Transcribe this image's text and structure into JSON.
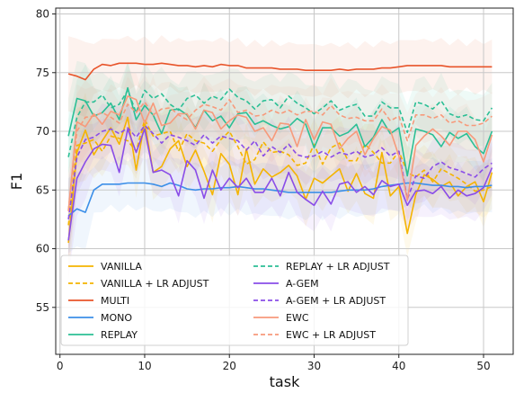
{
  "chart_data": {
    "type": "line",
    "xlabel": "task",
    "ylabel": "F1",
    "xlim": [
      -0.5,
      53.5
    ],
    "ylim": [
      51,
      80.5
    ],
    "xticks": [
      0,
      10,
      20,
      30,
      40,
      50
    ],
    "yticks": [
      55,
      60,
      65,
      70,
      75,
      80
    ],
    "grid": true,
    "legend_position": "lower-left",
    "x": [
      1,
      2,
      3,
      4,
      5,
      6,
      7,
      8,
      9,
      10,
      11,
      12,
      13,
      14,
      15,
      16,
      17,
      18,
      19,
      20,
      21,
      22,
      23,
      24,
      25,
      26,
      27,
      28,
      29,
      30,
      31,
      32,
      33,
      34,
      35,
      36,
      37,
      38,
      39,
      40,
      41,
      42,
      43,
      44,
      45,
      46,
      47,
      48,
      49,
      50,
      51
    ],
    "series": [
      {
        "name": "VANILLA",
        "color": "#f4b400",
        "dash": "solid",
        "band": true,
        "values": [
          60.5,
          68.2,
          70.1,
          68.0,
          69.2,
          70.3,
          68.9,
          71.2,
          66.7,
          70.8,
          66.5,
          67.0,
          68.5,
          69.2,
          67.0,
          68.4,
          66.6,
          64.6,
          68.1,
          67.2,
          64.6,
          68.5,
          65.5,
          66.8,
          66.1,
          66.5,
          67.1,
          66.2,
          64.2,
          66.0,
          65.6,
          66.2,
          66.8,
          64.9,
          66.4,
          64.7,
          64.3,
          68.2,
          64.5,
          65.3,
          61.3,
          64.6,
          66.3,
          65.9,
          65.3,
          65.7,
          64.5,
          65.3,
          65.7,
          64.0,
          66.5
        ]
      },
      {
        "name": "VANILLA + LR ADJUST",
        "color": "#f4b400",
        "dash": "dashed",
        "band": true,
        "values": [
          62.0,
          68.8,
          69.0,
          69.3,
          68.3,
          69.6,
          69.4,
          69.2,
          68.3,
          71.0,
          69.6,
          69.8,
          70.0,
          68.3,
          69.8,
          69.2,
          69.0,
          68.3,
          69.3,
          70.0,
          68.7,
          67.2,
          67.6,
          69.1,
          68.2,
          68.3,
          68.0,
          67.1,
          67.3,
          68.9,
          67.2,
          68.6,
          69.0,
          67.5,
          67.5,
          68.9,
          68.2,
          67.3,
          67.3,
          68.3,
          66.5,
          66.1,
          66.7,
          65.7,
          66.8,
          66.4,
          66.0,
          65.5,
          64.9,
          65.0,
          65.3
        ]
      },
      {
        "name": "MULTI",
        "color": "#e8542a",
        "dash": "solid",
        "band": true,
        "values": [
          74.9,
          74.7,
          74.4,
          75.3,
          75.7,
          75.6,
          75.8,
          75.8,
          75.8,
          75.7,
          75.7,
          75.8,
          75.7,
          75.6,
          75.6,
          75.5,
          75.6,
          75.5,
          75.7,
          75.6,
          75.6,
          75.4,
          75.4,
          75.4,
          75.4,
          75.3,
          75.3,
          75.3,
          75.2,
          75.2,
          75.2,
          75.2,
          75.3,
          75.2,
          75.3,
          75.3,
          75.3,
          75.4,
          75.4,
          75.5,
          75.6,
          75.6,
          75.6,
          75.6,
          75.6,
          75.5,
          75.5,
          75.5,
          75.5,
          75.5,
          75.5
        ]
      },
      {
        "name": "MONO",
        "color": "#3c8fe8",
        "dash": "solid",
        "band": true,
        "values": [
          62.8,
          63.4,
          63.1,
          65.0,
          65.5,
          65.5,
          65.5,
          65.6,
          65.6,
          65.6,
          65.5,
          65.3,
          65.6,
          65.4,
          65.1,
          65.0,
          65.1,
          65.1,
          65.2,
          65.2,
          65.3,
          65.2,
          65.1,
          65.1,
          65.0,
          64.9,
          64.8,
          64.8,
          64.8,
          64.8,
          64.8,
          64.8,
          64.9,
          65.0,
          65.0,
          65.0,
          65.1,
          65.3,
          65.4,
          65.5,
          65.6,
          65.6,
          65.5,
          65.4,
          65.4,
          65.3,
          65.3,
          65.2,
          65.3,
          65.3,
          65.4
        ]
      },
      {
        "name": "REPLAY",
        "color": "#2bbf95",
        "dash": "solid",
        "band": true,
        "values": [
          69.6,
          72.8,
          72.6,
          71.3,
          71.6,
          72.4,
          71.0,
          73.7,
          71.0,
          72.2,
          71.4,
          69.8,
          71.8,
          71.9,
          71.4,
          70.3,
          71.8,
          70.9,
          71.3,
          70.3,
          71.5,
          71.6,
          70.6,
          70.9,
          70.5,
          70.2,
          70.4,
          71.1,
          70.6,
          68.6,
          70.3,
          70.3,
          69.6,
          69.9,
          70.6,
          68.7,
          69.5,
          71.0,
          69.8,
          70.3,
          66.2,
          70.2,
          70.0,
          69.7,
          68.7,
          69.9,
          69.4,
          69.8,
          68.7,
          68.1,
          70.0
        ]
      },
      {
        "name": "REPLAY + LR ADJUST",
        "color": "#2bbf95",
        "dash": "dashed",
        "band": true,
        "values": [
          67.8,
          71.2,
          72.5,
          72.5,
          73.1,
          72.0,
          72.3,
          73.5,
          71.6,
          73.5,
          72.8,
          73.2,
          72.3,
          71.8,
          72.8,
          73.1,
          72.4,
          73.0,
          72.7,
          73.6,
          72.9,
          72.6,
          71.9,
          72.6,
          72.7,
          72.0,
          73.0,
          72.4,
          72.0,
          71.5,
          72.0,
          72.6,
          71.8,
          72.1,
          72.3,
          71.3,
          71.3,
          72.5,
          72.0,
          72.0,
          69.9,
          72.5,
          72.3,
          71.9,
          72.6,
          71.5,
          71.2,
          71.4,
          71.0,
          70.9,
          72.0
        ]
      },
      {
        "name": "A-GEM",
        "color": "#8a4de8",
        "dash": "solid",
        "band": true,
        "values": [
          60.7,
          66.0,
          67.4,
          68.5,
          68.9,
          68.8,
          66.5,
          70.2,
          68.2,
          70.2,
          66.5,
          66.7,
          66.3,
          64.5,
          67.5,
          66.7,
          64.3,
          66.7,
          65.0,
          66.0,
          65.2,
          66.0,
          64.8,
          64.8,
          66.0,
          64.5,
          66.5,
          64.8,
          64.2,
          63.7,
          64.9,
          63.8,
          65.5,
          65.7,
          64.8,
          65.3,
          64.6,
          65.8,
          65.3,
          65.5,
          63.7,
          64.9,
          65.0,
          64.7,
          65.3,
          64.3,
          65.0,
          64.5,
          64.7,
          65.2,
          66.9
        ]
      },
      {
        "name": "A-GEM + LR ADJUST",
        "color": "#8a4de8",
        "dash": "dashed",
        "band": true,
        "values": [
          62.5,
          67.8,
          69.3,
          69.5,
          70.0,
          70.2,
          69.8,
          70.3,
          69.5,
          70.5,
          69.8,
          69.0,
          69.7,
          69.5,
          69.2,
          68.8,
          69.7,
          69.0,
          69.6,
          69.4,
          69.2,
          68.4,
          69.2,
          67.9,
          68.7,
          68.2,
          68.9,
          68.0,
          67.8,
          67.9,
          68.3,
          67.8,
          68.2,
          68.0,
          68.3,
          67.8,
          68.0,
          68.6,
          67.9,
          68.3,
          64.2,
          66.2,
          66.0,
          67.0,
          67.4,
          66.9,
          66.7,
          66.4,
          66.1,
          66.8,
          67.3
        ]
      },
      {
        "name": "EWC",
        "color": "#f79a7b",
        "dash": "solid",
        "band": true,
        "values": [
          63.2,
          70.8,
          70.4,
          71.5,
          70.6,
          71.7,
          71.4,
          73.0,
          72.7,
          70.7,
          72.4,
          70.5,
          70.7,
          71.5,
          71.5,
          70.2,
          71.8,
          71.6,
          70.2,
          70.9,
          71.4,
          71.2,
          70.0,
          70.3,
          69.2,
          70.7,
          70.6,
          68.7,
          71.0,
          69.3,
          70.8,
          70.6,
          68.5,
          69.4,
          70.0,
          68.0,
          69.4,
          70.4,
          70.1,
          67.9,
          64.1,
          68.8,
          69.6,
          70.2,
          69.6,
          68.8,
          70.0,
          70.0,
          69.3,
          67.4,
          69.7
        ]
      },
      {
        "name": "EWC + LR ADJUST",
        "color": "#f79a7b",
        "dash": "dashed",
        "band": true,
        "values": [
          63.3,
          70.0,
          71.2,
          71.3,
          71.6,
          71.2,
          70.7,
          72.3,
          71.6,
          72.5,
          71.4,
          71.9,
          72.0,
          71.4,
          71.0,
          71.8,
          72.3,
          72.1,
          71.8,
          72.7,
          71.6,
          71.8,
          71.3,
          71.4,
          71.8,
          71.5,
          71.8,
          71.4,
          71.7,
          71.7,
          71.4,
          72.2,
          71.4,
          71.1,
          71.2,
          70.9,
          70.9,
          71.9,
          70.9,
          71.3,
          69.2,
          71.4,
          71.4,
          71.1,
          71.4,
          70.7,
          70.9,
          70.5,
          70.5,
          70.7,
          71.3
        ]
      }
    ]
  }
}
